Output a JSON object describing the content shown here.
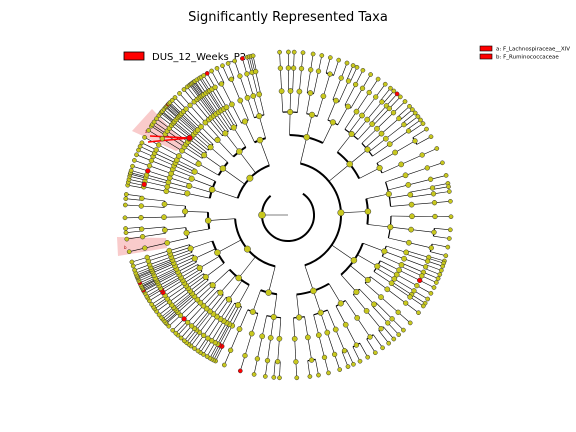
{
  "chart_data": {
    "type": "cladogram",
    "title": "Significantly Represented Taxa",
    "class_legend": [
      {
        "name": "DUS_12_Weeks_P2",
        "color": "#ff0000"
      }
    ],
    "clade_legend": [
      {
        "label": "a: F_Lachnospiraceae__XIV",
        "color": "#ff0000"
      },
      {
        "label": "b: F_Ruminococcaceae",
        "color": "#ff0000"
      }
    ],
    "highlighted_clades": [
      {
        "letter": "a",
        "name": "F_Lachnospiraceae__XIV"
      },
      {
        "letter": "b",
        "name": "F_Ruminococcaceae"
      }
    ],
    "node_colors": {
      "default": "#c8c81e",
      "significant": "#ff0000",
      "highlight_fill": "#f4a0a0"
    }
  }
}
